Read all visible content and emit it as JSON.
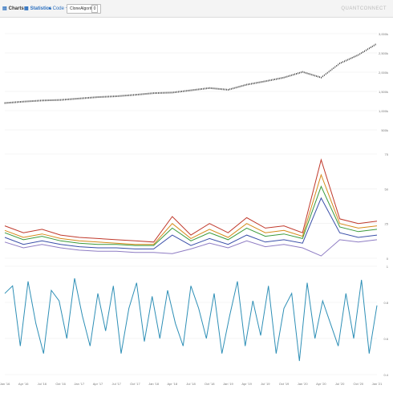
{
  "toolbar": {
    "charts_label": "Charts",
    "statistics_label": "Statistics",
    "code_label": "Code",
    "algorithm_select": "CloneAlgorithm",
    "small_value": "0",
    "brand": "QUANTCONNECT"
  },
  "chart_data": [
    {
      "type": "line",
      "title": "",
      "y_ticks": [
        "3,000k",
        "2,500k",
        "2,000k",
        "1,500k",
        "1,000k",
        "500k"
      ],
      "ylim": [
        0,
        3400000
      ],
      "x": [
        "Jan '16",
        "Apr '16",
        "Jul '16",
        "Oct '16",
        "Jan '17",
        "Apr '17",
        "Jul '17",
        "Oct '17",
        "Jan '18",
        "Apr '18",
        "Jul '18",
        "Oct '18",
        "Jan '19",
        "Apr '19",
        "Jul '19",
        "Oct '19",
        "Jan '20",
        "Apr '20",
        "Jul '20",
        "Oct '20",
        "Jan '21"
      ],
      "values": [
        950000,
        1000000,
        1040000,
        1060000,
        1110000,
        1160000,
        1190000,
        1240000,
        1300000,
        1320000,
        1400000,
        1480000,
        1420000,
        1600000,
        1720000,
        1850000,
        2050000,
        1850000,
        2350000,
        2650000,
        3050000
      ]
    },
    {
      "type": "line",
      "title": "",
      "y_ticks": [
        "75",
        "50",
        "25",
        "0"
      ],
      "ylim": [
        0,
        90
      ],
      "x": [
        "Jan '16",
        "Apr '16",
        "Jul '16",
        "Oct '16",
        "Jan '17",
        "Apr '17",
        "Jul '17",
        "Oct '17",
        "Jan '18",
        "Apr '18",
        "Jul '18",
        "Oct '18",
        "Jan '19",
        "Apr '19",
        "Jul '19",
        "Oct '19",
        "Jan '20",
        "Apr '20",
        "Jul '20",
        "Oct '20",
        "Jan '21"
      ],
      "series": [
        {
          "color": "#c0392b",
          "values": [
            28,
            22,
            25,
            20,
            18,
            17,
            16,
            15,
            14,
            36,
            20,
            30,
            22,
            35,
            26,
            28,
            22,
            85,
            34,
            30,
            32
          ]
        },
        {
          "color": "#d68a1a",
          "values": [
            24,
            18,
            21,
            17,
            15,
            14,
            13,
            12,
            12,
            30,
            17,
            25,
            18,
            30,
            22,
            24,
            19,
            72,
            30,
            26,
            28
          ]
        },
        {
          "color": "#3a9a3a",
          "values": [
            22,
            16,
            19,
            15,
            13,
            12,
            12,
            11,
            11,
            26,
            15,
            22,
            16,
            26,
            19,
            21,
            17,
            62,
            27,
            23,
            25
          ]
        },
        {
          "color": "#3a4fa8",
          "values": [
            18,
            12,
            15,
            12,
            10,
            9,
            9,
            8,
            8,
            20,
            11,
            17,
            12,
            20,
            14,
            16,
            13,
            52,
            22,
            18,
            20
          ]
        },
        {
          "color": "#8e7cc3",
          "values": [
            14,
            9,
            12,
            9,
            7,
            6,
            6,
            5,
            5,
            4,
            8,
            13,
            9,
            15,
            10,
            12,
            9,
            2,
            16,
            14,
            16
          ]
        }
      ]
    },
    {
      "type": "line",
      "title": "",
      "y_ticks": [
        "1",
        "0.8",
        "0.6",
        "0.4"
      ],
      "ylim": [
        0.36,
        1.08
      ],
      "series": [
        {
          "color": "#2e8fb6",
          "values": [
            0.9,
            0.95,
            0.55,
            0.98,
            0.7,
            0.5,
            0.92,
            0.85,
            0.6,
            1.0,
            0.75,
            0.55,
            0.9,
            0.65,
            0.95,
            0.5,
            0.8,
            0.97,
            0.58,
            0.88,
            0.6,
            0.92,
            0.7,
            0.55,
            0.95,
            0.8,
            0.6,
            0.9,
            0.5,
            0.75,
            0.98,
            0.55,
            0.85,
            0.62,
            0.95,
            0.5,
            0.8,
            0.9,
            0.45,
            0.97,
            0.6,
            0.85,
            0.7,
            0.55,
            0.9,
            0.6,
            0.99,
            0.5,
            0.82
          ]
        }
      ]
    }
  ]
}
